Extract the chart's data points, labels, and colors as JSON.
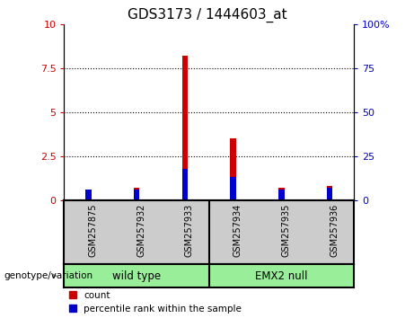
{
  "title": "GDS3173 / 1444603_at",
  "categories": [
    "GSM257875",
    "GSM257932",
    "GSM257933",
    "GSM257934",
    "GSM257935",
    "GSM257936"
  ],
  "count_values": [
    0.5,
    0.7,
    8.2,
    3.5,
    0.7,
    0.8
  ],
  "percentile_values": [
    6.0,
    6.0,
    18.0,
    13.0,
    6.0,
    7.0
  ],
  "left_ylim": [
    0,
    10
  ],
  "right_ylim": [
    0,
    100
  ],
  "left_yticks": [
    0,
    2.5,
    5,
    7.5,
    10
  ],
  "right_yticks": [
    0,
    25,
    50,
    75,
    100
  ],
  "left_yticklabels": [
    "0",
    "2.5",
    "5",
    "7.5",
    "10"
  ],
  "right_yticklabels": [
    "0",
    "25",
    "50",
    "75",
    "100%"
  ],
  "count_color": "#cc0000",
  "percentile_color": "#0000cc",
  "group1_label": "wild type",
  "group2_label": "EMX2 null",
  "group1_indices": [
    0,
    1,
    2
  ],
  "group2_indices": [
    3,
    4,
    5
  ],
  "group_bg_color": "#99ee99",
  "sample_bg_color": "#cccccc",
  "legend_count_label": "count",
  "legend_percentile_label": "percentile rank within the sample",
  "genotype_label": "genotype/variation",
  "title_fontsize": 11,
  "axis_label_color_left": "#cc0000",
  "axis_label_color_right": "#0000cc",
  "bar_width": 0.12
}
